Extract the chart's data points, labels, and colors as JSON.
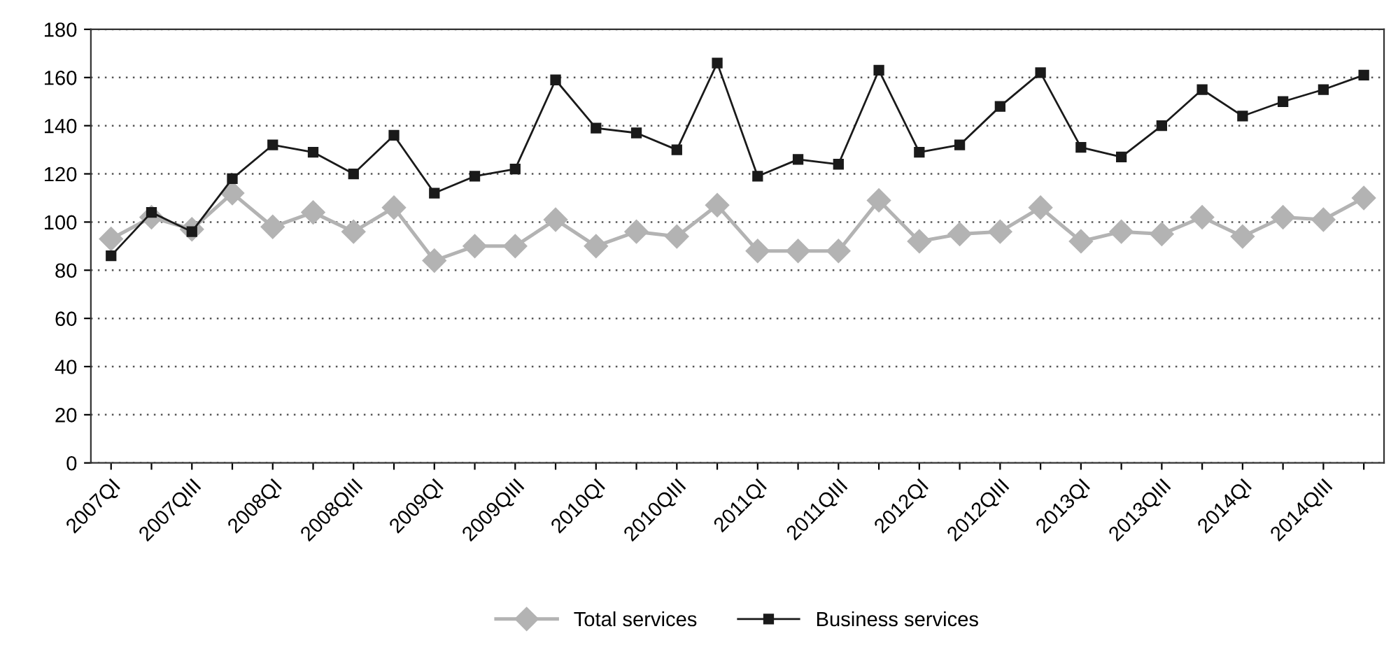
{
  "chart_data": {
    "type": "line",
    "categories": [
      "2007QI",
      null,
      "2007QIII",
      null,
      "2008QI",
      null,
      "2008QIII",
      null,
      "2009QI",
      null,
      "2009QIII",
      null,
      "2010QI",
      null,
      "2010QIII",
      null,
      "2011QI",
      null,
      "2011QIII",
      null,
      "2012QI",
      null,
      "2012QIII",
      null,
      "2013QI",
      null,
      "2013QIII",
      null,
      "2014QI",
      null,
      "2014QIII",
      null
    ],
    "series": [
      {
        "name": "Total services",
        "color": "#b3b3b3",
        "marker": "diamond",
        "values": [
          93,
          102,
          97,
          112,
          98,
          104,
          96,
          106,
          84,
          90,
          90,
          101,
          90,
          96,
          94,
          107,
          88,
          88,
          88,
          109,
          92,
          95,
          96,
          106,
          92,
          96,
          95,
          102,
          94,
          102,
          101,
          110
        ]
      },
      {
        "name": "Business services",
        "color": "#1a1a1a",
        "marker": "square",
        "values": [
          86,
          104,
          96,
          118,
          132,
          129,
          120,
          136,
          112,
          119,
          122,
          159,
          139,
          137,
          130,
          166,
          119,
          126,
          124,
          163,
          129,
          132,
          148,
          162,
          131,
          127,
          140,
          155,
          144,
          150,
          155,
          161
        ]
      }
    ],
    "ylim": [
      0,
      180
    ],
    "yticks": [
      0,
      20,
      40,
      60,
      80,
      100,
      120,
      140,
      160,
      180
    ],
    "grid": "y",
    "legend": "bottom",
    "line_style": "solid"
  }
}
